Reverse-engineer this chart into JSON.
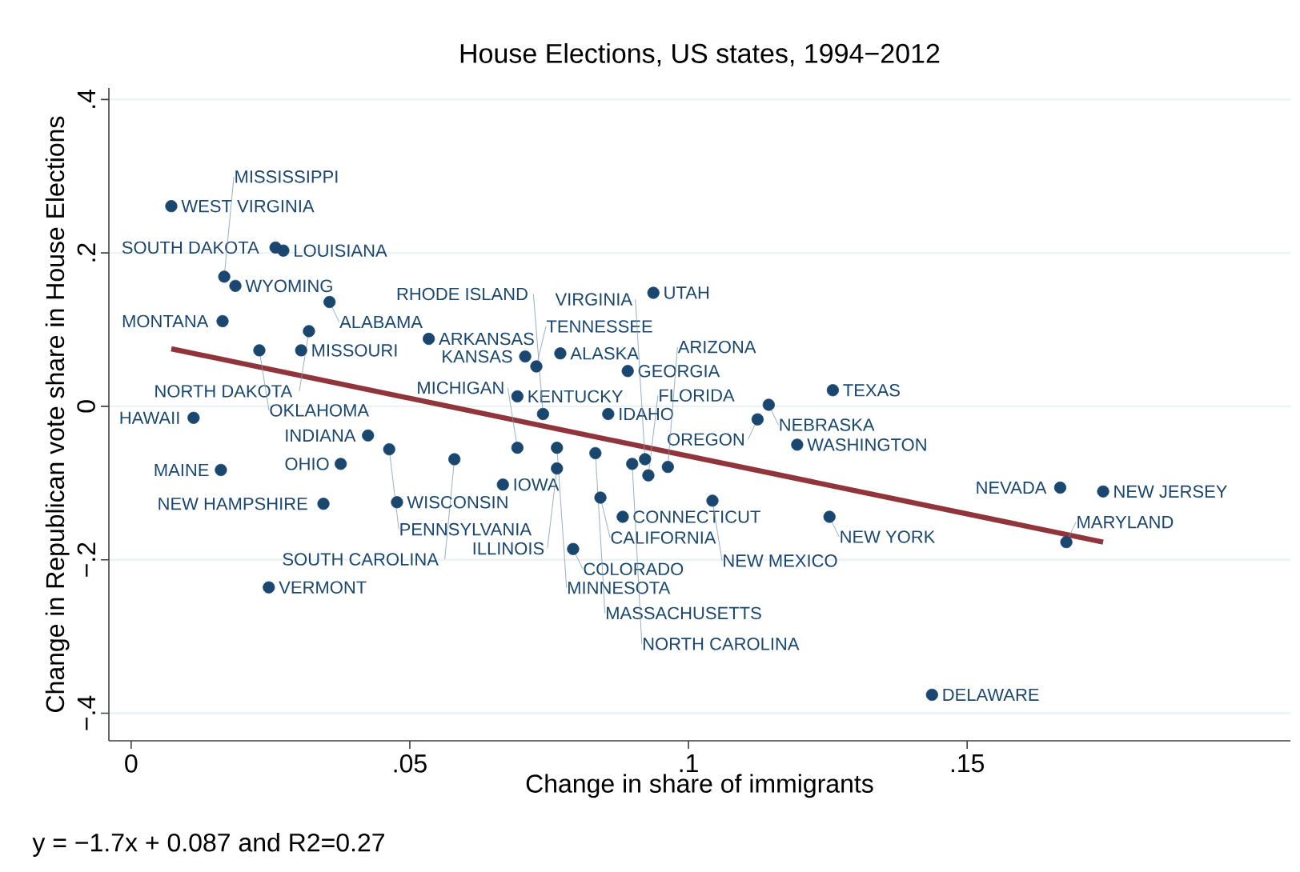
{
  "chart_data": {
    "type": "scatter",
    "title": "House Elections, US states, 1994−2012",
    "xlabel": "Change in share of immigrants",
    "ylabel": "Change in Republican vote share in House Elections",
    "xlim": [
      -0.004,
      0.208
    ],
    "ylim": [
      -0.436,
      0.415
    ],
    "xticks": [
      0,
      {
        "value": 0.05,
        "label": ".05"
      },
      {
        "value": 0.1,
        "label": ".1"
      },
      {
        "value": 0.15,
        "label": ".15"
      }
    ],
    "yticks": [
      {
        "value": -0.4,
        "label": "−.4"
      },
      {
        "value": -0.2,
        "label": "−.2"
      },
      0,
      {
        "value": 0.2,
        "label": ".2"
      },
      {
        "value": 0.4,
        "label": ".4"
      }
    ],
    "grid": "y",
    "marker": "circle",
    "series": [
      {
        "type": "scatter",
        "color": "#1a476f",
        "x": [
          0.0072,
          0.0259,
          0.0273,
          0.0167,
          0.0187,
          0.0356,
          0.0164,
          0.0319,
          0.0534,
          0.023,
          0.0305,
          0.0707,
          0.077,
          0.0727,
          0.0891,
          0.0937,
          0.0693,
          0.0739,
          0.0856,
          0.1144,
          0.1124,
          0.1259,
          0.1195,
          0.0112,
          0.0425,
          0.0463,
          0.0376,
          0.0161,
          0.058,
          0.0345,
          0.0477,
          0.0667,
          0.0247,
          0.0764,
          0.0842,
          0.0882,
          0.0793,
          0.0693,
          0.0764,
          0.0833,
          0.0922,
          0.0899,
          0.0963,
          0.0928,
          0.1043,
          0.1253,
          0.1667,
          0.1744,
          0.1678,
          0.1437
        ],
        "values": [
          0.261,
          0.207,
          0.203,
          0.169,
          0.157,
          0.136,
          0.111,
          0.098,
          0.088,
          0.073,
          0.073,
          0.065,
          0.069,
          0.052,
          0.046,
          0.148,
          0.013,
          -0.01,
          -0.01,
          0.002,
          -0.017,
          0.021,
          -0.05,
          -0.015,
          -0.038,
          -0.056,
          -0.075,
          -0.083,
          -0.069,
          -0.127,
          -0.125,
          -0.102,
          -0.236,
          -0.081,
          -0.119,
          -0.144,
          -0.186,
          -0.054,
          -0.054,
          -0.061,
          -0.069,
          -0.075,
          -0.079,
          -0.09,
          -0.123,
          -0.144,
          -0.106,
          -0.111,
          -0.177,
          -0.376
        ]
      },
      {
        "type": "line",
        "color": "#90353b",
        "marker": "none",
        "x": [
          0.0072,
          0.1744
        ],
        "values": [
          0.075,
          -0.177
        ]
      }
    ],
    "annotations": [
      {
        "text": "WEST VIRGINIA",
        "x": 0.0072,
        "y": 0.261
      },
      {
        "text": "SOUTH DAKOTA",
        "x": 0.0259,
        "y": 0.207
      },
      {
        "text": "LOUISIANA",
        "x": 0.0273,
        "y": 0.203
      },
      {
        "text": "MISSISSIPPI",
        "x": 0.0167,
        "y": 0.169
      },
      {
        "text": "WYOMING",
        "x": 0.0187,
        "y": 0.157
      },
      {
        "text": "ALABAMA",
        "x": 0.0356,
        "y": 0.136
      },
      {
        "text": "MONTANA",
        "x": 0.0164,
        "y": 0.111
      },
      {
        "text": "NORTH DAKOTA",
        "x": 0.0319,
        "y": 0.098
      },
      {
        "text": "ARKANSAS",
        "x": 0.0534,
        "y": 0.088
      },
      {
        "text": "OKLAHOMA",
        "x": 0.023,
        "y": 0.073
      },
      {
        "text": "MISSOURI",
        "x": 0.0305,
        "y": 0.073
      },
      {
        "text": "KANSAS",
        "x": 0.0707,
        "y": 0.065
      },
      {
        "text": "ALASKA",
        "x": 0.077,
        "y": 0.069
      },
      {
        "text": "TENNESSEE",
        "x": 0.0727,
        "y": 0.052
      },
      {
        "text": "GEORGIA",
        "x": 0.0891,
        "y": 0.046
      },
      {
        "text": "UTAH",
        "x": 0.0937,
        "y": 0.148
      },
      {
        "text": "KENTUCKY",
        "x": 0.0693,
        "y": 0.013
      },
      {
        "text": "RHODE ISLAND",
        "x": 0.0739,
        "y": -0.01
      },
      {
        "text": "IDAHO",
        "x": 0.0856,
        "y": -0.01
      },
      {
        "text": "NEBRASKA",
        "x": 0.1144,
        "y": 0.002
      },
      {
        "text": "OREGON",
        "x": 0.1124,
        "y": -0.017
      },
      {
        "text": "TEXAS",
        "x": 0.1259,
        "y": 0.021
      },
      {
        "text": "WASHINGTON",
        "x": 0.1195,
        "y": -0.05
      },
      {
        "text": "HAWAII",
        "x": 0.0112,
        "y": -0.015
      },
      {
        "text": "INDIANA",
        "x": 0.0425,
        "y": -0.038
      },
      {
        "text": "PENNSYLVANIA",
        "x": 0.0463,
        "y": -0.056
      },
      {
        "text": "OHIO",
        "x": 0.0376,
        "y": -0.075
      },
      {
        "text": "MAINE",
        "x": 0.0161,
        "y": -0.083
      },
      {
        "text": "SOUTH CAROLINA",
        "x": 0.058,
        "y": -0.069
      },
      {
        "text": "NEW HAMPSHIRE",
        "x": 0.0345,
        "y": -0.127
      },
      {
        "text": "WISCONSIN",
        "x": 0.0477,
        "y": -0.125
      },
      {
        "text": "IOWA",
        "x": 0.0667,
        "y": -0.102
      },
      {
        "text": "VERMONT",
        "x": 0.0247,
        "y": -0.236
      },
      {
        "text": "ILLINOIS",
        "x": 0.0764,
        "y": -0.081
      },
      {
        "text": "CALIFORNIA",
        "x": 0.0842,
        "y": -0.119
      },
      {
        "text": "CONNECTICUT",
        "x": 0.0882,
        "y": -0.144
      },
      {
        "text": "COLORADO",
        "x": 0.0793,
        "y": -0.186
      },
      {
        "text": "MICHIGAN",
        "x": 0.0693,
        "y": -0.054
      },
      {
        "text": "MINNESOTA",
        "x": 0.0764,
        "y": -0.054
      },
      {
        "text": "MASSACHUSETTS",
        "x": 0.0833,
        "y": -0.061
      },
      {
        "text": "VIRGINIA",
        "x": 0.0922,
        "y": -0.069
      },
      {
        "text": "NORTH CAROLINA",
        "x": 0.0899,
        "y": -0.075
      },
      {
        "text": "ARIZONA",
        "x": 0.0963,
        "y": -0.079
      },
      {
        "text": "FLORIDA",
        "x": 0.0928,
        "y": -0.09
      },
      {
        "text": "NEW MEXICO",
        "x": 0.1043,
        "y": -0.123
      },
      {
        "text": "NEW YORK",
        "x": 0.1253,
        "y": -0.144
      },
      {
        "text": "NEVADA",
        "x": 0.1667,
        "y": -0.106
      },
      {
        "text": "NEW JERSEY",
        "x": 0.1744,
        "y": -0.111
      },
      {
        "text": "MARYLAND",
        "x": 0.1678,
        "y": -0.177
      },
      {
        "text": "DELAWARE",
        "x": 0.1437,
        "y": -0.376
      },
      "y = −1.7x + 0.087 and R2=0.27"
    ]
  }
}
